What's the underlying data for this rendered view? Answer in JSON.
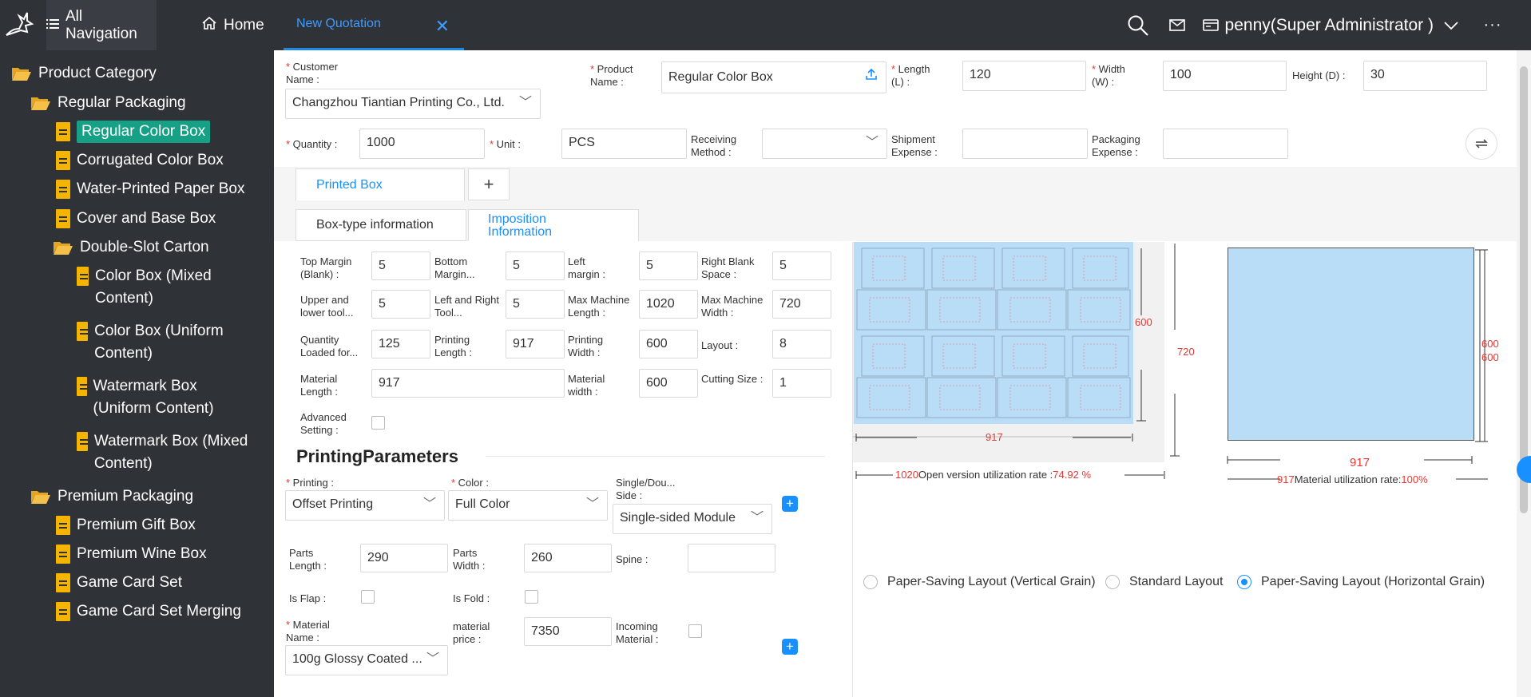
{
  "topbar": {
    "all_nav": "All Navigation",
    "home": "Home",
    "active_tab": "New Quotation",
    "user": "penny(Super Administrator )"
  },
  "sidebar": {
    "root": "Product Category",
    "regular": "Regular Packaging",
    "items_regular": [
      "Regular Color Box",
      "Corrugated Color Box",
      "Water-Printed Paper Box",
      "Cover and Base Box"
    ],
    "double_slot": "Double-Slot Carton",
    "items_double": [
      "Color Box (Mixed Content)",
      "Color Box (Uniform Content)",
      "Watermark Box (Uniform Content)",
      "Watermark Box (Mixed Content)"
    ],
    "premium": "Premium Packaging",
    "items_premium": [
      "Premium Gift Box",
      "Premium Wine Box",
      "Game Card Set",
      "Game Card Set Merging"
    ]
  },
  "form": {
    "customer_name_label": "Customer Name :",
    "customer_name": "Changzhou Tiantian Printing Co., Ltd.",
    "product_name_label": "Product Name :",
    "product_name": "Regular Color Box",
    "length_label": "Length (L) :",
    "length": "120",
    "width_label": "Width (W) :",
    "width": "100",
    "height_label": "Height (D) :",
    "height": "30",
    "quantity_label": "Quantity :",
    "quantity": "1000",
    "unit_label": "Unit :",
    "unit": "PCS",
    "receiving_label": "Receiving Method :",
    "shipment_label": "Shipment Expense :",
    "packaging_label": "Packaging Expense :"
  },
  "tabs": {
    "printed_box": "Printed Box",
    "add": "+",
    "box_type": "Box-type information",
    "imposition": "Imposition Information"
  },
  "imposition": {
    "top_margin_label": "Top Margin (Blank) :",
    "top_margin": "5",
    "bottom_margin_label": "Bottom Margin...",
    "bottom_margin": "5",
    "left_margin_label": "Left margin :",
    "left_margin": "5",
    "right_blank_label": "Right Blank Space :",
    "right_blank": "5",
    "upper_lower_label": "Upper and lower tool...",
    "upper_lower": "5",
    "left_right_label": "Left and Right Tool...",
    "left_right": "5",
    "max_len_label": "Max Machine Length :",
    "max_len": "1020",
    "max_wid_label": "Max Machine Width :",
    "max_wid": "720",
    "qty_loaded_label": "Quantity Loaded for...",
    "qty_loaded": "125",
    "print_len_label": "Printing Length :",
    "print_len": "917",
    "print_wid_label": "Printing Width :",
    "print_wid": "600",
    "layout_label": "Layout :",
    "layout": "8",
    "mat_len_label": "Material Length :",
    "mat_len": "917",
    "mat_wid_label": "Material width :",
    "mat_wid": "600",
    "cutting_label": "Cutting Size :",
    "cutting": "1",
    "advanced_label": "Advanced Setting :"
  },
  "printing": {
    "title": "PrintingParameters",
    "printing_label": "Printing :",
    "printing": "Offset Printing",
    "color_label": "Color :",
    "color": "Full Color",
    "side_label": "Single/Dou... Side :",
    "side": "Single-sided Module",
    "parts_len_label": "Parts Length :",
    "parts_len": "290",
    "parts_wid_label": "Parts Width :",
    "parts_wid": "260",
    "spine_label": "Spine :",
    "flap_label": "Is Flap :",
    "fold_label": "Is Fold :",
    "material_label": "Material Name :",
    "material": "100g Glossy Coated ...",
    "mat_price_label": "material price :",
    "mat_price": "7350",
    "incoming_label": "Incoming Material :"
  },
  "diagram": {
    "left_w": "917",
    "left_h_inner": "600",
    "left_h_outer": "720",
    "left_total": "1020",
    "open_rate_label": "Open version utilization rate :",
    "open_rate": "74.92 %",
    "right_w": "917",
    "right_h1": "600",
    "right_h2": "600",
    "right_total": "917",
    "mat_rate_label": "Material utilization rate:",
    "mat_rate": "100%"
  },
  "layout_options": [
    "Paper-Saving Layout (Vertical Grain)",
    "Standard Layout",
    "Paper-Saving Layout (Horizontal Grain)"
  ],
  "colors": {
    "accent": "#1890ff",
    "dark": "#2f3237",
    "highlight": "#16a085",
    "sheet": "#b9dcf7",
    "red": "#e53935"
  }
}
